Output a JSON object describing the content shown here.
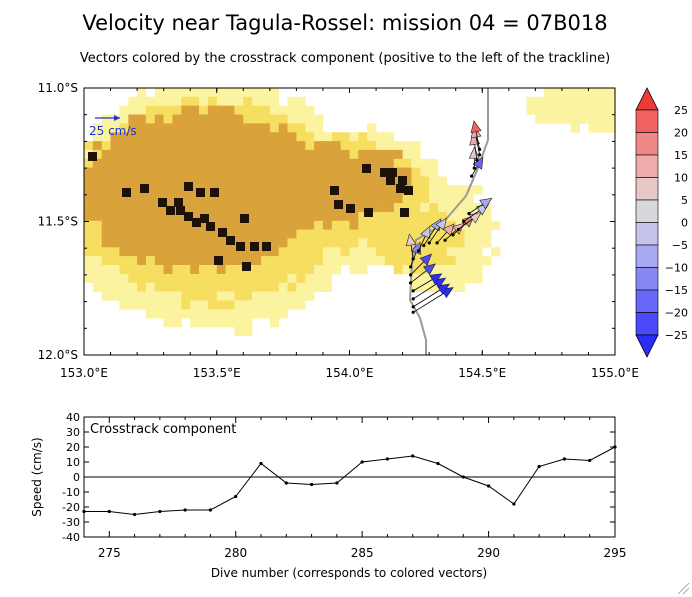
{
  "title": "Velocity near Tagula-Rossel: mission 04 = 07B018",
  "subtitle": "Vectors colored by the crosstrack component (positive to the left of the trackline)",
  "colors": {
    "land_light": "#fbf3a0",
    "land_mid": "#f5de60",
    "land_dark": "#d9a23a",
    "land_black": "#1e1208",
    "track": "#999999"
  },
  "chart_data": [
    {
      "type": "map",
      "xlim": [
        153.0,
        155.0
      ],
      "ylim": [
        -12.0,
        -11.0
      ],
      "x_ticks": [
        "153.0°E",
        "153.5°E",
        "154.0°E",
        "154.5°E",
        "155.0°E"
      ],
      "y_ticks": [
        "11.0°S",
        "11.5°S",
        "12.0°S"
      ],
      "scale_label": "25 cm/s",
      "colorbar": {
        "labels": [
          "25",
          "20",
          "15",
          "10",
          "5",
          "0",
          "−5",
          "−10",
          "−15",
          "−20",
          "−25"
        ],
        "colors": [
          "#f03a3a",
          "#f36262",
          "#f08888",
          "#eeacac",
          "#e6c8c8",
          "#d8d8dc",
          "#c4c4ee",
          "#a8a8f2",
          "#8888f4",
          "#6868f6",
          "#4a4af8",
          "#2c2cf8"
        ]
      },
      "vectors": [
        {
          "dive": 274,
          "lon": 154.24,
          "lat": -11.84,
          "u": 21,
          "v": 13,
          "crosstrack": -23
        },
        {
          "dive": 275,
          "lon": 154.24,
          "lat": -11.82,
          "u": 19,
          "v": 12,
          "crosstrack": -23
        },
        {
          "dive": 276,
          "lon": 154.24,
          "lat": -11.79,
          "u": 17,
          "v": 11,
          "crosstrack": -25
        },
        {
          "dive": 277,
          "lon": 154.24,
          "lat": -11.76,
          "u": 15,
          "v": 9,
          "crosstrack": -23
        },
        {
          "dive": 278,
          "lon": 154.23,
          "lat": -11.73,
          "u": 13,
          "v": 10,
          "crosstrack": -22
        },
        {
          "dive": 279,
          "lon": 154.23,
          "lat": -11.7,
          "u": 11,
          "v": 11,
          "crosstrack": -22
        },
        {
          "dive": 280,
          "lon": 154.23,
          "lat": -11.67,
          "u": 5,
          "v": 13,
          "crosstrack": -13
        },
        {
          "dive": 281,
          "lon": 154.24,
          "lat": -11.64,
          "u": -2,
          "v": 13,
          "crosstrack": 9
        },
        {
          "dive": 282,
          "lon": 154.26,
          "lat": -11.61,
          "u": 6,
          "v": 13,
          "crosstrack": -4
        },
        {
          "dive": 283,
          "lon": 154.28,
          "lat": -11.59,
          "u": 9,
          "v": 14,
          "crosstrack": -5
        },
        {
          "dive": 284,
          "lon": 154.3,
          "lat": -11.58,
          "u": 9,
          "v": 13,
          "crosstrack": -4
        },
        {
          "dive": 285,
          "lon": 154.33,
          "lat": -11.58,
          "u": 9,
          "v": 10,
          "crosstrack": 10
        },
        {
          "dive": 286,
          "lon": 154.36,
          "lat": -11.57,
          "u": 10,
          "v": 9,
          "crosstrack": 12
        },
        {
          "dive": 287,
          "lon": 154.39,
          "lat": -11.55,
          "u": 11,
          "v": 10,
          "crosstrack": 14
        },
        {
          "dive": 288,
          "lon": 154.41,
          "lat": -11.53,
          "u": 12,
          "v": 9,
          "crosstrack": 9
        },
        {
          "dive": 289,
          "lon": 154.43,
          "lat": -11.5,
          "u": 13,
          "v": 9,
          "crosstrack": 0
        },
        {
          "dive": 290,
          "lon": 154.45,
          "lat": -11.47,
          "u": 12,
          "v": 8,
          "crosstrack": -6
        },
        {
          "dive": 291,
          "lon": 154.46,
          "lat": -11.33,
          "u": 6,
          "v": 10,
          "crosstrack": -18
        },
        {
          "dive": 292,
          "lon": 154.47,
          "lat": -11.3,
          "u": 0,
          "v": 11,
          "crosstrack": 7
        },
        {
          "dive": 293,
          "lon": 154.48,
          "lat": -11.27,
          "u": -2,
          "v": 14,
          "crosstrack": 12
        },
        {
          "dive": 294,
          "lon": 154.49,
          "lat": -11.25,
          "u": -3,
          "v": 15,
          "crosstrack": 11
        },
        {
          "dive": 295,
          "lon": 154.49,
          "lat": -11.23,
          "u": -3,
          "v": 15,
          "crosstrack": 20
        }
      ]
    },
    {
      "type": "line",
      "annotation": "Crosstrack component",
      "xlabel": "Dive number (corresponds to colored vectors)",
      "ylabel": "Speed (cm/s)",
      "xlim": [
        274,
        295
      ],
      "ylim": [
        -40,
        40
      ],
      "x_ticks": [
        275,
        280,
        285,
        290,
        295
      ],
      "y_ticks": [
        -40,
        -30,
        -20,
        -10,
        0,
        10,
        20,
        30,
        40
      ],
      "x": [
        274,
        275,
        276,
        277,
        278,
        279,
        280,
        281,
        282,
        283,
        284,
        285,
        286,
        287,
        288,
        289,
        290,
        291,
        292,
        293,
        294,
        295
      ],
      "values": [
        -23,
        -23,
        -25,
        -23,
        -22,
        -22,
        -13,
        9,
        -4,
        -5,
        -4,
        10,
        12,
        14,
        9,
        0,
        -6,
        -18,
        7,
        12,
        11,
        20
      ]
    }
  ]
}
